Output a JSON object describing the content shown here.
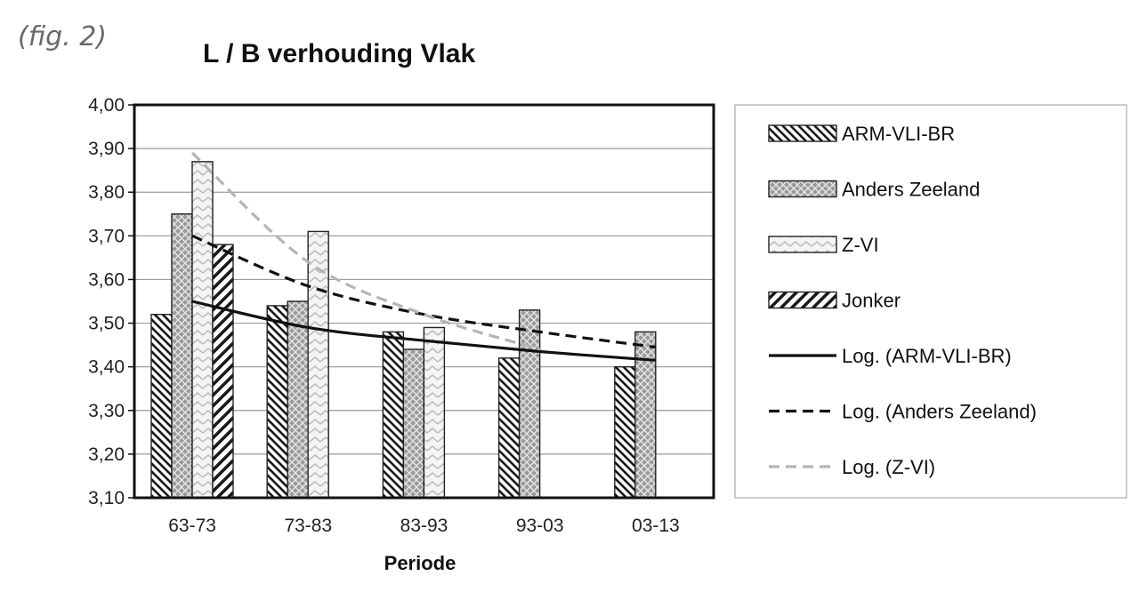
{
  "figure": {
    "label": "(fig. 2)"
  },
  "chart_data": {
    "type": "bar",
    "title": "L / B verhouding Vlak",
    "xlabel": "Periode",
    "ylabel": "",
    "categories": [
      "63-73",
      "73-83",
      "83-93",
      "93-03",
      "03-13"
    ],
    "ylim": [
      3.1,
      4.0
    ],
    "yticks": [
      "3,10",
      "3,20",
      "3,30",
      "3,40",
      "3,50",
      "3,60",
      "3,70",
      "3,80",
      "3,90",
      "4,00"
    ],
    "grid": true,
    "legend_position": "right",
    "series": [
      {
        "name": "ARM-VLI-BR",
        "pattern": "diag-left",
        "values": [
          3.52,
          3.54,
          3.48,
          3.42,
          3.4
        ]
      },
      {
        "name": "Anders Zeeland",
        "pattern": "crosshatch",
        "values": [
          3.75,
          3.55,
          3.44,
          3.53,
          3.48
        ]
      },
      {
        "name": "Z-VI",
        "pattern": "zigzag-light",
        "values": [
          3.87,
          3.71,
          3.49,
          null,
          null
        ]
      },
      {
        "name": "Jonker",
        "pattern": "diag-right",
        "values": [
          3.68,
          null,
          null,
          null,
          null
        ]
      }
    ],
    "trendlines": [
      {
        "name": "Log. (ARM-VLI-BR)",
        "style": "solid",
        "color": "#111111",
        "values": [
          3.55,
          3.49,
          3.46,
          3.435,
          3.415
        ]
      },
      {
        "name": "Log. (Anders Zeeland)",
        "style": "dashed",
        "color": "#111111",
        "values": [
          3.7,
          3.585,
          3.52,
          3.48,
          3.445
        ]
      },
      {
        "name": "Log. (Z-VI)",
        "style": "dashed",
        "color": "#b5b5b5",
        "values": [
          3.89,
          3.64,
          3.52,
          3.44,
          null
        ]
      }
    ]
  }
}
